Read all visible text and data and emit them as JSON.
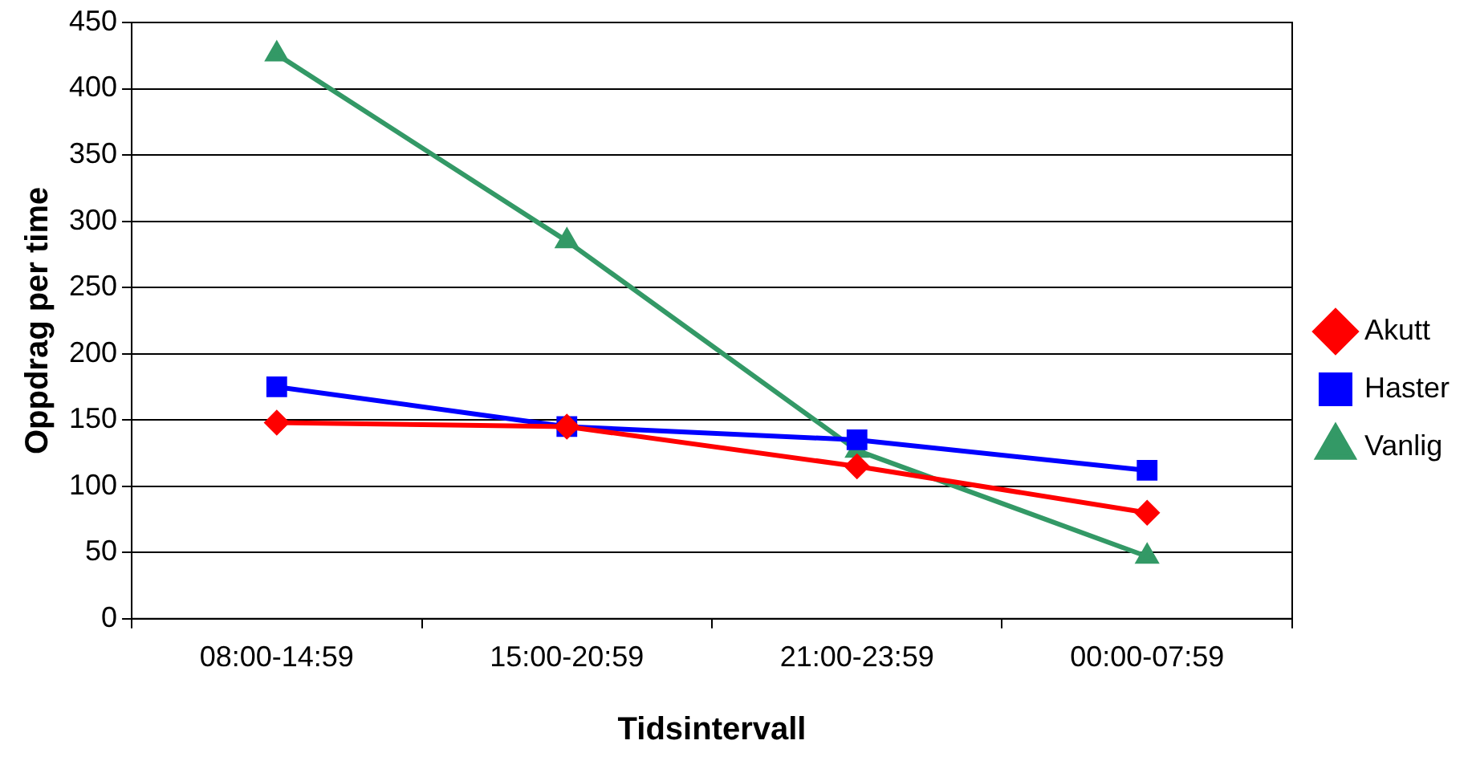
{
  "chart_data": {
    "type": "line",
    "xlabel": "Tidsintervall",
    "ylabel": "Oppdrag per time",
    "categories": [
      "08:00-14:59",
      "15:00-20:59",
      "21:00-23:59",
      "00:00-07:59"
    ],
    "series": [
      {
        "name": "Akutt",
        "color": "#ff0000",
        "marker": "diamond",
        "values": [
          148,
          145,
          115,
          80
        ]
      },
      {
        "name": "Haster",
        "color": "#0000ff",
        "marker": "square",
        "values": [
          175,
          145,
          135,
          112
        ]
      },
      {
        "name": "Vanlig",
        "color": "#339966",
        "marker": "triangle",
        "values": [
          426,
          285,
          127,
          47
        ]
      }
    ],
    "ylim": [
      0,
      450
    ],
    "yticks": [
      0,
      50,
      100,
      150,
      200,
      250,
      300,
      350,
      400,
      450
    ],
    "grid": "y",
    "legend": "right",
    "line_style": "solid"
  }
}
